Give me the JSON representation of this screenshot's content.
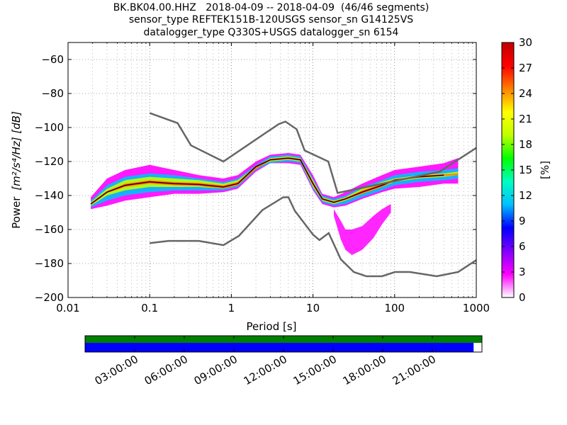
{
  "chart_data": {
    "type": "heatmap",
    "title_lines": [
      "BK.BK04.00.HHZ   2018-04-09 -- 2018-04-09  (46/46 segments)",
      "sensor_type REFTEK151B-120USGS sensor_sn G14125VS",
      "datalogger_type Q330S+USGS datalogger_sn 6154"
    ],
    "xlabel": "Period [s]",
    "ylabel": "Power",
    "ylabel_units": "[m²/s⁴/Hz] [dB]",
    "xscale": "log",
    "xlim": [
      0.01,
      1000
    ],
    "ylim": [
      -200,
      -50
    ],
    "x_ticks": [
      {
        "value": 0.01,
        "label": "0.01"
      },
      {
        "value": 0.1,
        "label": "0.1"
      },
      {
        "value": 1,
        "label": "1"
      },
      {
        "value": 10,
        "label": "10"
      },
      {
        "value": 100,
        "label": "100"
      },
      {
        "value": 1000,
        "label": "1000"
      }
    ],
    "y_ticks": [
      {
        "value": -60,
        "label": "−60"
      },
      {
        "value": -80,
        "label": "−80"
      },
      {
        "value": -100,
        "label": "−100"
      },
      {
        "value": -120,
        "label": "−120"
      },
      {
        "value": -140,
        "label": "−140"
      },
      {
        "value": -160,
        "label": "−160"
      },
      {
        "value": -180,
        "label": "−180"
      },
      {
        "value": -200,
        "label": "−200"
      }
    ],
    "grid": true,
    "colorbar": {
      "label": "[%]",
      "range": [
        0,
        30
      ],
      "ticks": [
        {
          "value": 0,
          "label": "0"
        },
        {
          "value": 3,
          "label": "3"
        },
        {
          "value": 6,
          "label": "6"
        },
        {
          "value": 9,
          "label": "9"
        },
        {
          "value": 12,
          "label": "12"
        },
        {
          "value": 15,
          "label": "15"
        },
        {
          "value": 18,
          "label": "18"
        },
        {
          "value": 21,
          "label": "21"
        },
        {
          "value": 24,
          "label": "24"
        },
        {
          "value": 27,
          "label": "27"
        },
        {
          "value": 30,
          "label": "30"
        }
      ],
      "colors": [
        "#ffffff",
        "#ff00ff",
        "#8000ff",
        "#0000ff",
        "#00c0ff",
        "#00ffc0",
        "#00ff00",
        "#c0ff00",
        "#ffff00",
        "#ff8000",
        "#ff0000",
        "#c00000"
      ]
    },
    "noise_models": {
      "color": "#666666",
      "high": {
        "x": [
          0.1,
          0.22,
          0.32,
          0.8,
          3.8,
          4.6,
          6.3,
          7.9,
          15.4,
          20,
          354.8,
          1000
        ],
        "y": [
          -91.5,
          -97.4,
          -110.5,
          -120,
          -98,
          -96.5,
          -101,
          -113.5,
          -120,
          -138.5,
          -126,
          -112
        ]
      },
      "low": {
        "x": [
          0.1,
          0.17,
          0.4,
          0.8,
          1.24,
          2.4,
          4.3,
          5,
          6,
          10,
          12,
          15.6,
          21.9,
          31.6,
          45,
          70,
          101,
          154,
          328,
          600,
          1000
        ],
        "y": [
          -168,
          -166.7,
          -166.7,
          -169.2,
          -163.7,
          -148.6,
          -141.1,
          -141,
          -149,
          -163,
          -166.2,
          -162.1,
          -177.5,
          -185,
          -187.5,
          -187.5,
          -185,
          -185,
          -187.5,
          -185,
          -178
        ]
      }
    },
    "mode_curve": {
      "x": [
        0.019,
        0.03,
        0.05,
        0.1,
        0.2,
        0.4,
        0.8,
        1.2,
        2,
        3,
        5,
        7,
        10,
        13,
        18,
        25,
        40,
        70,
        100,
        200,
        400
      ],
      "y": [
        -145,
        -138,
        -134,
        -132,
        -133,
        -133.5,
        -135,
        -133,
        -123,
        -119,
        -118,
        -119,
        -133,
        -142,
        -144,
        -142,
        -138,
        -134,
        -131,
        -129,
        -128
      ]
    },
    "density_bands": [
      {
        "x": [
          0.019,
          0.03,
          0.05,
          0.1,
          0.2,
          0.4,
          0.8,
          1.2,
          2,
          3,
          5,
          7,
          10,
          13,
          18,
          25,
          40,
          70,
          100,
          200,
          400,
          600
        ],
        "upper": [
          -141,
          -130,
          -125,
          -122,
          -125,
          -128,
          -130,
          -128,
          -120,
          -116,
          -115,
          -116,
          -128,
          -139,
          -141,
          -138,
          -133,
          -128,
          -125,
          -123,
          -121,
          -118
        ],
        "lower": [
          -148,
          -146,
          -143,
          -141,
          -139,
          -139,
          -138,
          -136,
          -126,
          -121,
          -121,
          -122,
          -137,
          -145,
          -147,
          -146,
          -142,
          -138,
          -136,
          -135,
          -133,
          -133
        ],
        "pct": 3
      },
      {
        "x": [
          0.019,
          0.03,
          0.05,
          0.1,
          0.2,
          0.4,
          0.8,
          1.2,
          2,
          3,
          5,
          7,
          10,
          13,
          18,
          25,
          40,
          70,
          100,
          200,
          400,
          600
        ],
        "upper": [
          -143,
          -134,
          -129,
          -127,
          -128,
          -130,
          -132,
          -130,
          -122,
          -117,
          -116,
          -117,
          -130,
          -140,
          -142,
          -140,
          -135,
          -131,
          -128,
          -126,
          -125,
          -124
        ],
        "lower": [
          -147,
          -143,
          -140,
          -138,
          -137,
          -137,
          -137,
          -135,
          -125,
          -121,
          -120,
          -121,
          -136,
          -144,
          -146,
          -145,
          -141,
          -137,
          -134,
          -132,
          -131,
          -130
        ],
        "pct": 12
      },
      {
        "x": [
          0.019,
          0.03,
          0.05,
          0.1,
          0.2,
          0.4,
          0.8,
          1.2,
          2,
          3,
          5,
          7,
          10,
          13,
          18,
          25,
          40,
          70,
          100,
          200,
          400,
          600
        ],
        "upper": [
          -144,
          -136,
          -131,
          -129,
          -130,
          -131,
          -133,
          -131,
          -123,
          -118,
          -117,
          -118,
          -131,
          -141,
          -143,
          -141,
          -136,
          -132,
          -130,
          -128,
          -127,
          -126
        ],
        "lower": [
          -146,
          -140,
          -137,
          -135,
          -135,
          -135,
          -136,
          -134,
          -124,
          -120,
          -119,
          -120,
          -135,
          -143,
          -145,
          -143,
          -139,
          -135,
          -132,
          -130,
          -129,
          -128
        ],
        "pct": 18
      },
      {
        "x": [
          0.019,
          0.03,
          0.05,
          0.1,
          0.2,
          0.4,
          0.8,
          1.2,
          2,
          3,
          5,
          7,
          10,
          13,
          18,
          25,
          40,
          70,
          100,
          200,
          400,
          600
        ],
        "upper": [
          -144.5,
          -137.5,
          -133,
          -131,
          -132,
          -132.5,
          -134,
          -132,
          -123.5,
          -118.5,
          -117.5,
          -118.5,
          -132,
          -141.5,
          -143.5,
          -141.5,
          -137,
          -133,
          -130.5,
          -128.5,
          -127.5,
          -127
        ],
        "lower": [
          -145.5,
          -138.5,
          -135,
          -133,
          -134,
          -134.5,
          -136,
          -134,
          -124.5,
          -119.5,
          -118.5,
          -119.5,
          -134,
          -142.5,
          -144.5,
          -142.5,
          -139,
          -135,
          -131.5,
          -129.5,
          -128.5,
          -128
        ],
        "pct": 24
      }
    ],
    "outlier_tail": {
      "x": [
        18,
        22,
        25,
        30,
        40,
        55,
        70,
        90
      ],
      "upper": [
        -148,
        -155,
        -160,
        -160,
        -158,
        -152,
        -148,
        -145
      ],
      "lower": [
        -152,
        -166,
        -172,
        -175,
        -172,
        -165,
        -157,
        -150
      ],
      "pct": 2
    },
    "timeline": {
      "tick_labels": [
        "03:00:00",
        "06:00:00",
        "09:00:00",
        "12:00:00",
        "15:00:00",
        "18:00:00",
        "21:00:00"
      ],
      "tick_hours": [
        3,
        6,
        9,
        12,
        15,
        18,
        21
      ],
      "span_hours": 24,
      "coverage_color": "#008000",
      "used_color": "#0000ff",
      "coverage_fraction": 1.0,
      "used_fraction": 0.979
    }
  }
}
